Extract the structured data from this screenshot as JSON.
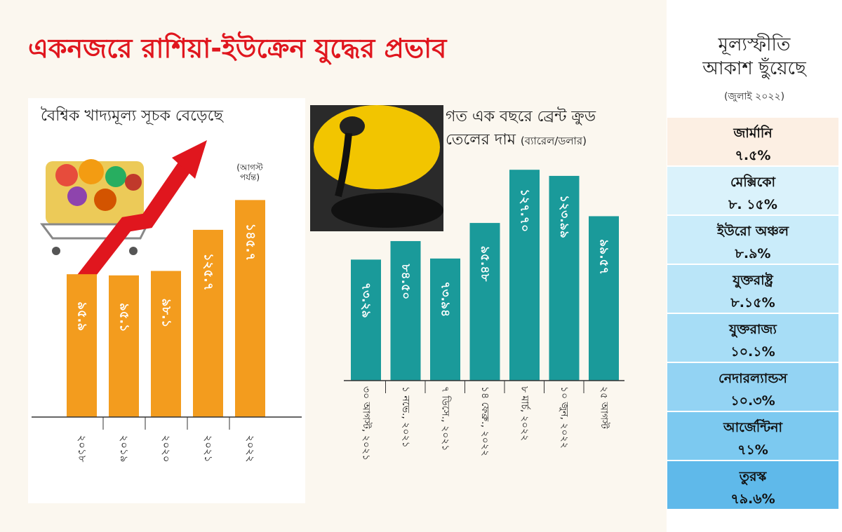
{
  "main_title": "একনজরে রাশিয়া-ইউক্রেন যুদ্ধের প্রভাব",
  "food_chart": {
    "title": "বৈশ্বিক খাদ্যমূল্য সূচক বেড়েছে",
    "note": "(আগস্ট পর্যন্ত)",
    "bar_color": "#f39c1e",
    "chart_data": {
      "type": "bar",
      "categories": [
        "২০১৮",
        "২০১৯",
        "২০২০",
        "২০২১",
        "২০২২"
      ],
      "values": [
        95.9,
        95.1,
        98.1,
        125.7,
        145.7
      ],
      "value_labels": [
        "৯৫.৯",
        "৯৫.১",
        "৯৮.১",
        "১২৫.৭",
        "১৪৫.৭"
      ],
      "ylim": [
        0,
        160
      ]
    }
  },
  "oil_chart": {
    "title_line1": "গত এক বছরে ব্রেন্ট ক্রুড",
    "title_line2": "তেলের দাম",
    "unit": "(ব্যারেল/ডলার)",
    "bar_color": "#1a9a9a",
    "chart_data": {
      "type": "bar",
      "categories": [
        "৩০ আগস্ট, ২০২১",
        "১ নভে., ২০২১",
        "৭ ডিসে., ২০২১",
        "১৪ ফেব্রু., ২০২২",
        "৮ মার্চ, ২০২২",
        "১০ জুন, ২০২২",
        "২৫ আগস্ট"
      ],
      "values": [
        73.29,
        84.5,
        73.94,
        95.48,
        127.7,
        123.99,
        99.57
      ],
      "value_labels": [
        "৭৩.২৯",
        "৮৪.৫০",
        "৭৩.৯৪",
        "৯৫.৪৮",
        "১২৭.৭০",
        "১২৩.৯৯",
        "৯৯.৫৭"
      ],
      "ylim": [
        0,
        135
      ]
    }
  },
  "inflation": {
    "title_line1": "মূল্যস্ফীতি",
    "title_line2": "আকাশ ছুঁয়েছে",
    "subtitle": "(জুলাই ২০২২)",
    "countries": [
      {
        "name": "জার্মানি",
        "value": "৭.৫%",
        "color": "#fcefe3"
      },
      {
        "name": "মেক্সিকো",
        "value": "৮. ১৫%",
        "color": "#daf2fb"
      },
      {
        "name": "ইউরো অঞ্চল",
        "value": "৮.৯%",
        "color": "#caecfa"
      },
      {
        "name": "যুক্তরাষ্ট্র",
        "value": "৮.১৫%",
        "color": "#bae5f8"
      },
      {
        "name": "যুক্তরাজ্য",
        "value": "১০.১%",
        "color": "#a7ddf6"
      },
      {
        "name": "নেদারল্যান্ডস",
        "value": "১০.৩%",
        "color": "#93d3f3"
      },
      {
        "name": "আর্জেন্টিনা",
        "value": "৭১%",
        "color": "#7cc9f0"
      },
      {
        "name": "তুরস্ক",
        "value": "৭৯.৬%",
        "color": "#5fb9ea"
      }
    ]
  }
}
